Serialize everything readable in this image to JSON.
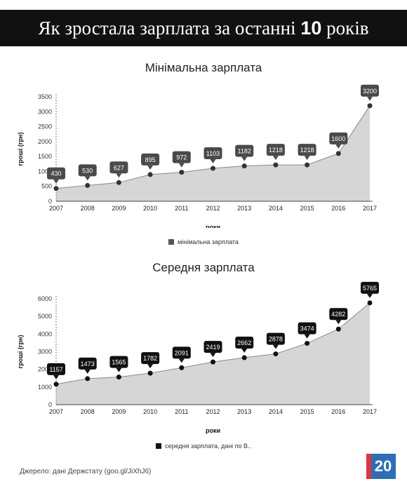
{
  "header": {
    "title_main": "Як зростала зарплата за останні",
    "title_number": "10",
    "title_end": "років"
  },
  "chart_data": [
    {
      "type": "area",
      "title": "Мінімальна зарплата",
      "xlabel": "роки",
      "ylabel": "гроші (грн)",
      "categories": [
        "2007",
        "2008",
        "2009",
        "2010",
        "2011",
        "2012",
        "2013",
        "2014",
        "2015",
        "2016",
        "2017"
      ],
      "series": [
        {
          "name": "мінімальна зарплата",
          "values": [
            430,
            530,
            627,
            895,
            972,
            1103,
            1182,
            1218,
            1218,
            1600,
            3200
          ]
        }
      ],
      "ylim": [
        0,
        3500
      ],
      "yticks": [
        0,
        500,
        1000,
        1500,
        2000,
        2500,
        3000,
        3500
      ],
      "fill_color": "#d6d6d6",
      "line_color": "#888888",
      "marker_color": "#333333",
      "label_color": "#4a4a4a",
      "legend_color": "#555555",
      "legend_position": "bottom"
    },
    {
      "type": "area",
      "title": "Середня зарплата",
      "xlabel": "роки",
      "ylabel": "гроші (грн)",
      "categories": [
        "2007",
        "2008",
        "2009",
        "2010",
        "2011",
        "2012",
        "2013",
        "2014",
        "2015",
        "2016",
        "2017"
      ],
      "series": [
        {
          "name": "середня зарплата, дані по В..",
          "values": [
            1157,
            1473,
            1565,
            1782,
            2091,
            2419,
            2662,
            2878,
            3474,
            4282,
            5765
          ]
        }
      ],
      "ylim": [
        0,
        6000
      ],
      "yticks": [
        0,
        1000,
        2000,
        3000,
        4000,
        5000,
        6000
      ],
      "fill_color": "#d6d6d6",
      "line_color": "#888888",
      "marker_color": "#111111",
      "label_color": "#111111",
      "legend_color": "#111111",
      "legend_position": "bottom"
    }
  ],
  "footer": {
    "source": "Джерело: дані Держстату (goo.gl/JiXhJ6)",
    "logo_text": "20",
    "logo_color": "#2a6fb8",
    "logo_side_color": "#e2343b"
  }
}
